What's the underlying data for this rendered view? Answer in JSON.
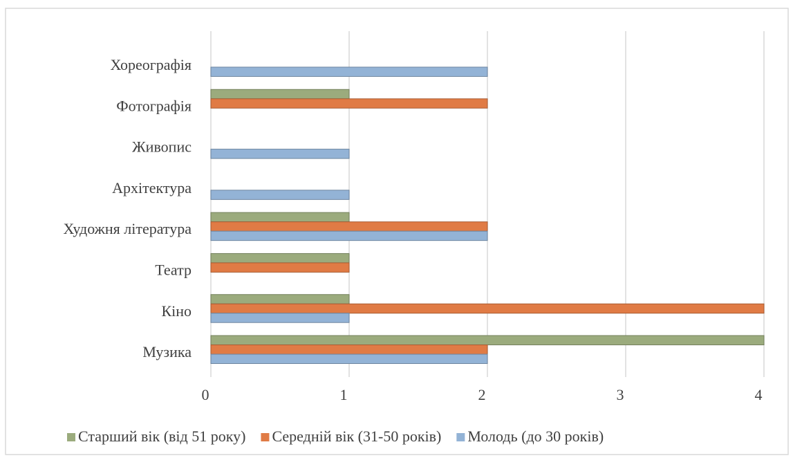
{
  "chart_data": {
    "type": "bar",
    "orientation": "horizontal",
    "categories": [
      "Музика",
      "Кіно",
      "Театр",
      "Художня література",
      "Архітектура",
      "Живопис",
      "Фотографія",
      "Хореографія"
    ],
    "series": [
      {
        "name": "Старший вік (від 51 року)",
        "color": "#9bab7d",
        "values": [
          4,
          1,
          1,
          1,
          0,
          0,
          1,
          0
        ]
      },
      {
        "name": "Середній вік (31-50 років)",
        "color": "#e07b45",
        "values": [
          2,
          4,
          1,
          2,
          0,
          0,
          2,
          0
        ]
      },
      {
        "name": "Молодь (до 30 років)",
        "color": "#93b3d6",
        "values": [
          2,
          1,
          0,
          2,
          1,
          1,
          0,
          2
        ]
      }
    ],
    "xlim": [
      0,
      4
    ],
    "xticks": [
      0,
      1,
      2,
      3,
      4
    ],
    "grid": true,
    "legend": "bottom"
  }
}
